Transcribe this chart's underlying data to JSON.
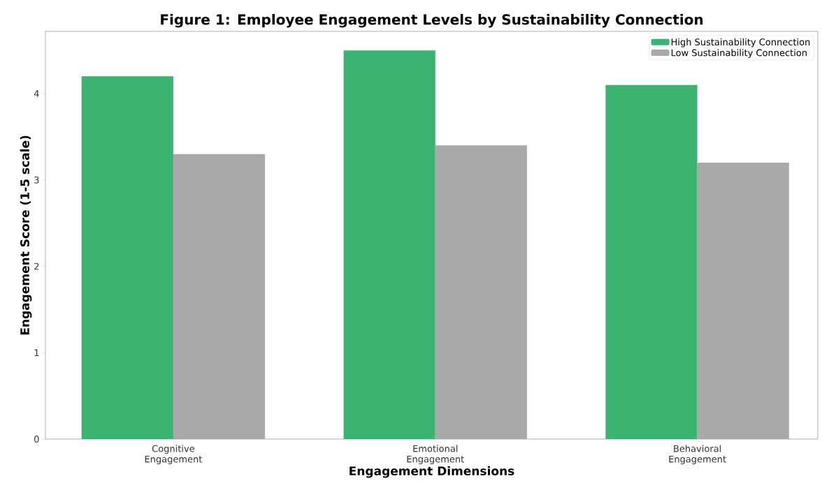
{
  "chart_data": {
    "type": "bar",
    "title": "Figure 1: Employee Engagement Levels by Sustainability Connection",
    "xlabel": "Engagement Dimensions",
    "ylabel": "Engagement Score (1-5 scale)",
    "categories": [
      "Cognitive Engagement",
      "Emotional Engagement",
      "Behavioral Engagement"
    ],
    "series": [
      {
        "name": "High Sustainability Connection",
        "color": "#3cb371",
        "values": [
          4.2,
          4.5,
          4.1
        ]
      },
      {
        "name": "Low Sustainability Connection",
        "color": "#a9a9a9",
        "values": [
          3.3,
          3.4,
          3.2
        ]
      }
    ],
    "ylim": [
      0,
      4.72
    ],
    "yticks": [
      0,
      1,
      2,
      3,
      4
    ],
    "grid": false,
    "legend": "top right"
  }
}
